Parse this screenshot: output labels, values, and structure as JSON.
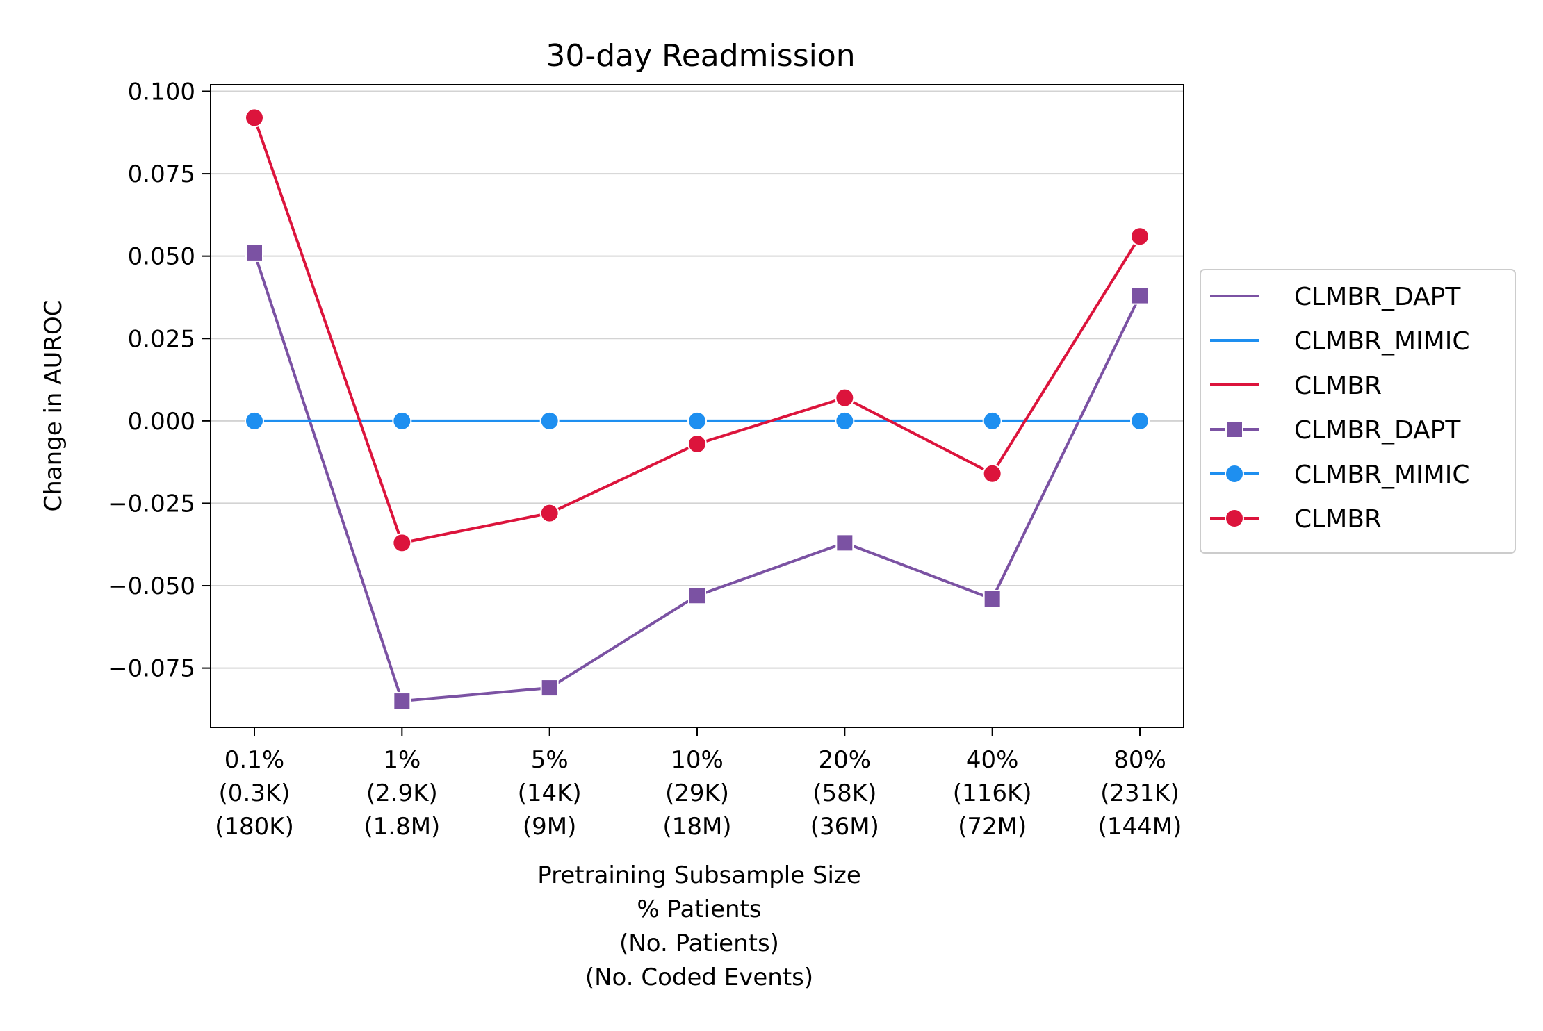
{
  "chart_data": {
    "type": "line",
    "title": "30-day Readmission",
    "ylabel": "Change in AUROC",
    "xlabel_lines": [
      "Pretraining Subsample Size",
      "% Patients",
      "(No. Patients)",
      "(No. Coded Events)"
    ],
    "categories": [
      [
        "0.1%",
        "(0.3K)",
        "(180K)"
      ],
      [
        "1%",
        "(2.9K)",
        "(1.8M)"
      ],
      [
        "5%",
        "(14K)",
        "(9M)"
      ],
      [
        "10%",
        "(29K)",
        "(18M)"
      ],
      [
        "20%",
        "(58K)",
        "(36M)"
      ],
      [
        "40%",
        "(116K)",
        "(72M)"
      ],
      [
        "80%",
        "(231K)",
        "(144M)"
      ]
    ],
    "ylim": [
      -0.093,
      0.102
    ],
    "yticks": [
      0.1,
      0.075,
      0.05,
      0.025,
      0.0,
      -0.025,
      -0.05,
      -0.075
    ],
    "ytick_labels": [
      "0.100",
      "0.075",
      "0.050",
      "0.025",
      "0.000",
      "−0.025",
      "−0.050",
      "−0.075"
    ],
    "grid": "horizontal",
    "legend_placement": "outside-right",
    "series": [
      {
        "name": "CLMBR_DAPT",
        "color": "#7b52a3",
        "marker": "square",
        "values": [
          0.051,
          -0.085,
          -0.081,
          -0.053,
          -0.037,
          -0.054,
          0.038
        ]
      },
      {
        "name": "CLMBR_MIMIC",
        "color": "#1e8ff0",
        "marker": "circle",
        "values": [
          0.0,
          0.0,
          0.0,
          0.0,
          0.0,
          0.0,
          0.0
        ]
      },
      {
        "name": "CLMBR",
        "color": "#dc143c",
        "marker": "circle",
        "values": [
          0.092,
          -0.037,
          -0.028,
          -0.007,
          0.007,
          -0.016,
          0.056
        ]
      }
    ],
    "legend_entries": [
      {
        "label": "CLMBR_DAPT",
        "series": 0,
        "style": "line"
      },
      {
        "label": "CLMBR_MIMIC",
        "series": 1,
        "style": "line"
      },
      {
        "label": "CLMBR",
        "series": 2,
        "style": "line"
      },
      {
        "label": "CLMBR_DAPT",
        "series": 0,
        "style": "line-marker"
      },
      {
        "label": "CLMBR_MIMIC",
        "series": 1,
        "style": "line-marker"
      },
      {
        "label": "CLMBR",
        "series": 2,
        "style": "line-marker"
      }
    ]
  }
}
